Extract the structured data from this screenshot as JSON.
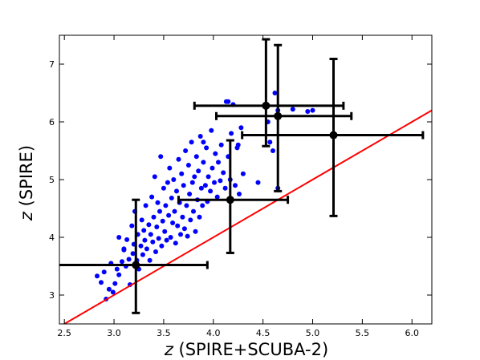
{
  "chart_data": {
    "type": "scatter",
    "xlabel": "z (SPIRE+SCUBA-2)",
    "xlabel_italic": "z",
    "xlabel_rest": " (SPIRE+SCUBA-2)",
    "ylabel": "z (SPIRE)",
    "ylabel_italic": "z",
    "ylabel_rest": " (SPIRE)",
    "xlim": [
      2.45,
      6.2
    ],
    "ylim": [
      2.5,
      7.5
    ],
    "x_ticks": [
      "2.5",
      "3.0",
      "3.5",
      "4.0",
      "4.5",
      "5.0",
      "5.5",
      "6.0"
    ],
    "x_tick_values": [
      2.5,
      3.0,
      3.5,
      4.0,
      4.5,
      5.0,
      5.5,
      6.0
    ],
    "y_ticks": [
      "3",
      "4",
      "5",
      "6",
      "7"
    ],
    "y_tick_values": [
      3,
      4,
      5,
      6,
      7
    ],
    "grid": false,
    "colors": {
      "scatter": "#0000ff",
      "line": "#ff0000",
      "errorbars": "#000000"
    },
    "series": [
      {
        "kind": "scatter",
        "points": [
          [
            2.83,
            3.33
          ],
          [
            2.87,
            3.22
          ],
          [
            2.9,
            3.4
          ],
          [
            2.92,
            2.93
          ],
          [
            2.95,
            3.1
          ],
          [
            2.97,
            3.55
          ],
          [
            2.99,
            3.05
          ],
          [
            3.01,
            3.2
          ],
          [
            3.03,
            3.45
          ],
          [
            3.05,
            3.35
          ],
          [
            3.08,
            3.58
          ],
          [
            3.1,
            3.78
          ],
          [
            3.12,
            3.5
          ],
          [
            3.13,
            3.96
          ],
          [
            3.15,
            3.62
          ],
          [
            3.16,
            3.18
          ],
          [
            3.18,
            4.2
          ],
          [
            3.19,
            3.72
          ],
          [
            3.2,
            3.88
          ],
          [
            3.21,
            4.45
          ],
          [
            3.23,
            3.6
          ],
          [
            3.24,
            4.05
          ],
          [
            3.25,
            3.45
          ],
          [
            3.27,
            3.85
          ],
          [
            3.28,
            4.3
          ],
          [
            3.29,
            3.7
          ],
          [
            3.3,
            4.12
          ],
          [
            3.31,
            3.95
          ],
          [
            3.32,
            4.55
          ],
          [
            3.33,
            3.8
          ],
          [
            3.35,
            4.22
          ],
          [
            3.36,
            3.6
          ],
          [
            3.37,
            4.05
          ],
          [
            3.38,
            4.7
          ],
          [
            3.39,
            3.92
          ],
          [
            3.4,
            4.35
          ],
          [
            3.41,
            5.05
          ],
          [
            3.42,
            3.75
          ],
          [
            3.43,
            4.18
          ],
          [
            3.44,
            4.6
          ],
          [
            3.45,
            3.98
          ],
          [
            3.46,
            4.45
          ],
          [
            3.47,
            5.4
          ],
          [
            3.48,
            3.85
          ],
          [
            3.49,
            4.28
          ],
          [
            3.5,
            4.85
          ],
          [
            3.51,
            4.1
          ],
          [
            3.52,
            4.55
          ],
          [
            3.53,
            3.95
          ],
          [
            3.54,
            4.95
          ],
          [
            3.55,
            4.38
          ],
          [
            3.56,
            5.2
          ],
          [
            3.57,
            4.0
          ],
          [
            3.58,
            4.68
          ],
          [
            3.59,
            4.25
          ],
          [
            3.6,
            5.0
          ],
          [
            3.61,
            4.45
          ],
          [
            3.62,
            3.9
          ],
          [
            3.63,
            4.8
          ],
          [
            3.64,
            4.2
          ],
          [
            3.65,
            5.35
          ],
          [
            3.66,
            4.6
          ],
          [
            3.67,
            4.05
          ],
          [
            3.68,
            5.1
          ],
          [
            3.69,
            4.35
          ],
          [
            3.7,
            4.9
          ],
          [
            3.71,
            4.15
          ],
          [
            3.72,
            5.5
          ],
          [
            3.73,
            4.55
          ],
          [
            3.74,
            4.02
          ],
          [
            3.75,
            5.25
          ],
          [
            3.76,
            4.75
          ],
          [
            3.77,
            4.3
          ],
          [
            3.78,
            5.65
          ],
          [
            3.79,
            4.95
          ],
          [
            3.8,
            4.45
          ],
          [
            3.81,
            5.05
          ],
          [
            3.82,
            4.1
          ],
          [
            3.83,
            5.4
          ],
          [
            3.84,
            4.65
          ],
          [
            3.85,
            5.15
          ],
          [
            3.86,
            4.35
          ],
          [
            3.87,
            5.75
          ],
          [
            3.88,
            4.85
          ],
          [
            3.89,
            4.55
          ],
          [
            3.9,
            5.3
          ],
          [
            3.92,
            4.9
          ],
          [
            3.93,
            5.55
          ],
          [
            3.94,
            4.62
          ],
          [
            3.95,
            5.05
          ],
          [
            3.97,
            4.8
          ],
          [
            3.98,
            5.85
          ],
          [
            3.99,
            5.2
          ],
          [
            4.01,
            4.95
          ],
          [
            4.02,
            5.45
          ],
          [
            4.04,
            4.7
          ],
          [
            4.05,
            5.3
          ],
          [
            4.07,
            4.98
          ],
          [
            4.08,
            5.6
          ],
          [
            4.1,
            5.12
          ],
          [
            4.12,
            4.85
          ],
          [
            4.13,
            6.35
          ],
          [
            4.15,
            5.4
          ],
          [
            4.17,
            5.0
          ],
          [
            4.18,
            5.8
          ],
          [
            4.2,
            6.3
          ],
          [
            4.22,
            4.9
          ],
          [
            4.24,
            5.55
          ],
          [
            4.26,
            4.75
          ],
          [
            4.28,
            5.9
          ],
          [
            4.3,
            5.1
          ],
          [
            4.45,
            4.95
          ],
          [
            4.55,
            6.0
          ],
          [
            4.57,
            5.65
          ],
          [
            4.62,
            6.5
          ],
          [
            4.65,
            6.2
          ],
          [
            4.65,
            4.85
          ],
          [
            4.6,
            5.5
          ],
          [
            4.8,
            6.22
          ],
          [
            4.95,
            6.18
          ],
          [
            5.0,
            6.2
          ],
          [
            4.25,
            5.6
          ],
          [
            4.15,
            6.35
          ],
          [
            3.9,
            5.65
          ],
          [
            3.1,
            3.8
          ],
          [
            3.05,
            4.0
          ]
        ]
      },
      {
        "kind": "errorbar",
        "points": [
          {
            "x": 3.22,
            "y": 3.52,
            "xerr": [
              0.78,
              0.72
            ],
            "yerr": [
              0.83,
              1.13
            ]
          },
          {
            "x": 4.17,
            "y": 4.65,
            "xerr": [
              0.52,
              0.58
            ],
            "yerr": [
              0.92,
              1.03
            ]
          },
          {
            "x": 4.53,
            "y": 6.28,
            "xerr": [
              0.72,
              0.78
            ],
            "yerr": [
              0.7,
              1.15
            ]
          },
          {
            "x": 4.65,
            "y": 6.1,
            "xerr": [
              0.62,
              0.74
            ],
            "yerr": [
              1.3,
              1.23
            ]
          },
          {
            "x": 5.21,
            "y": 5.77,
            "xerr": [
              0.92,
              0.9
            ],
            "yerr": [
              1.4,
              1.32
            ]
          }
        ]
      },
      {
        "kind": "line",
        "x": [
          2.45,
          6.2
        ],
        "y": [
          2.45,
          6.2
        ]
      }
    ]
  }
}
